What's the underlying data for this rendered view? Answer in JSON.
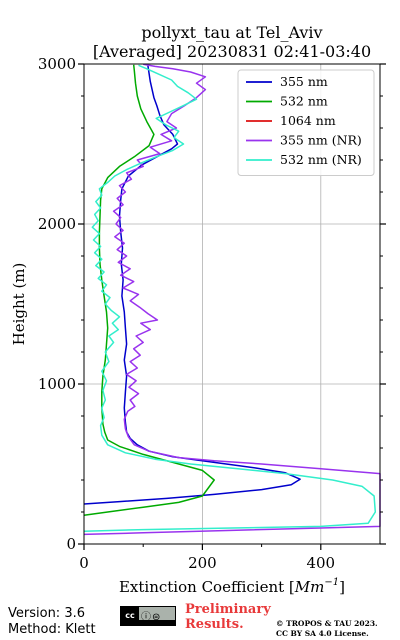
{
  "footer": {
    "version": "Version: 3.6",
    "method": "Method: Klett",
    "license_badge": {
      "left": "cc",
      "icons": "ⓘ⊜",
      "strip": "BY SA"
    },
    "preliminary_line1": "Preliminary",
    "preliminary_line2": "Results.",
    "copyright_line1": "© TROPOS & TAU 2023.",
    "copyright_line2": "CC BY SA 4.0 License."
  },
  "chart_data": {
    "type": "line",
    "title_line1": "pollyxt_tau at Tel_Aviv",
    "title_line2": "[Averaged] 20230831 02:41-03:40",
    "xlabel_prefix": "Extinction Coefficient [",
    "xlabel_unit": "Mm",
    "xlabel_exp": "−1",
    "xlabel_suffix": "]",
    "ylabel": "Height (m)",
    "xlim": [
      0,
      500
    ],
    "ylim": [
      0,
      3000
    ],
    "xticks": [
      0,
      200,
      400
    ],
    "xtick_labels": [
      "0",
      "200",
      "400"
    ],
    "yticks": [
      0,
      1000,
      2000,
      3000
    ],
    "ytick_labels": [
      "0",
      "1000",
      "2000",
      "3000"
    ],
    "grid": true,
    "legend_position": "top-right",
    "series": [
      {
        "name": "355 nm",
        "color": "#0000cc",
        "points": [
          [
            0,
            250
          ],
          [
            60,
            265
          ],
          [
            140,
            285
          ],
          [
            220,
            310
          ],
          [
            300,
            340
          ],
          [
            350,
            370
          ],
          [
            365,
            405
          ],
          [
            340,
            445
          ],
          [
            290,
            475
          ],
          [
            220,
            510
          ],
          [
            150,
            545
          ],
          [
            110,
            580
          ],
          [
            90,
            620
          ],
          [
            78,
            660
          ],
          [
            72,
            700
          ],
          [
            70,
            760
          ],
          [
            68,
            850
          ],
          [
            70,
            950
          ],
          [
            72,
            1050
          ],
          [
            68,
            1150
          ],
          [
            72,
            1250
          ],
          [
            70,
            1350
          ],
          [
            68,
            1450
          ],
          [
            64,
            1550
          ],
          [
            66,
            1650
          ],
          [
            63,
            1750
          ],
          [
            65,
            1850
          ],
          [
            62,
            1950
          ],
          [
            60,
            2050
          ],
          [
            62,
            2150
          ],
          [
            64,
            2220
          ],
          [
            75,
            2300
          ],
          [
            98,
            2370
          ],
          [
            128,
            2430
          ],
          [
            148,
            2470
          ],
          [
            158,
            2500
          ],
          [
            150,
            2560
          ],
          [
            135,
            2620
          ],
          [
            128,
            2680
          ],
          [
            123,
            2740
          ],
          [
            118,
            2790
          ],
          [
            115,
            2840
          ],
          [
            112,
            2890
          ],
          [
            110,
            2940
          ],
          [
            108,
            2990
          ]
        ]
      },
      {
        "name": "532 nm",
        "color": "#00aa00",
        "points": [
          [
            0,
            180
          ],
          [
            40,
            200
          ],
          [
            100,
            230
          ],
          [
            160,
            260
          ],
          [
            200,
            300
          ],
          [
            220,
            400
          ],
          [
            200,
            460
          ],
          [
            150,
            510
          ],
          [
            100,
            560
          ],
          [
            60,
            610
          ],
          [
            40,
            650
          ],
          [
            35,
            700
          ],
          [
            32,
            750
          ],
          [
            30,
            850
          ],
          [
            30,
            950
          ],
          [
            32,
            1050
          ],
          [
            36,
            1150
          ],
          [
            38,
            1250
          ],
          [
            40,
            1350
          ],
          [
            38,
            1450
          ],
          [
            34,
            1550
          ],
          [
            30,
            1650
          ],
          [
            27,
            1750
          ],
          [
            26,
            1850
          ],
          [
            26,
            1950
          ],
          [
            27,
            2050
          ],
          [
            28,
            2150
          ],
          [
            30,
            2220
          ],
          [
            40,
            2290
          ],
          [
            60,
            2360
          ],
          [
            85,
            2420
          ],
          [
            110,
            2490
          ],
          [
            118,
            2560
          ],
          [
            106,
            2640
          ],
          [
            96,
            2720
          ],
          [
            90,
            2800
          ],
          [
            87,
            2880
          ],
          [
            85,
            2960
          ],
          [
            84,
            2995
          ]
        ]
      },
      {
        "name": "1064 nm",
        "color": "#dd1111",
        "points": []
      },
      {
        "name": "355 nm (NR)",
        "color": "#9933ee",
        "points": [
          [
            0,
            60
          ],
          [
            100,
            70
          ],
          [
            250,
            85
          ],
          [
            400,
            100
          ],
          [
            500,
            110
          ],
          [
            500,
            440
          ],
          [
            400,
            470
          ],
          [
            300,
            500
          ],
          [
            220,
            520
          ],
          [
            160,
            540
          ],
          [
            110,
            580
          ],
          [
            85,
            620
          ],
          [
            75,
            670
          ],
          [
            70,
            720
          ],
          [
            68,
            780
          ],
          [
            74,
            830
          ],
          [
            86,
            860
          ],
          [
            78,
            900
          ],
          [
            92,
            940
          ],
          [
            76,
            980
          ],
          [
            88,
            1020
          ],
          [
            72,
            1060
          ],
          [
            90,
            1100
          ],
          [
            78,
            1140
          ],
          [
            95,
            1180
          ],
          [
            84,
            1220
          ],
          [
            100,
            1260
          ],
          [
            88,
            1300
          ],
          [
            112,
            1340
          ],
          [
            96,
            1380
          ],
          [
            124,
            1400
          ],
          [
            108,
            1440
          ],
          [
            94,
            1480
          ],
          [
            78,
            1520
          ],
          [
            92,
            1560
          ],
          [
            66,
            1600
          ],
          [
            84,
            1640
          ],
          [
            62,
            1680
          ],
          [
            78,
            1720
          ],
          [
            58,
            1760
          ],
          [
            72,
            1800
          ],
          [
            56,
            1840
          ],
          [
            68,
            1880
          ],
          [
            52,
            1920
          ],
          [
            66,
            1960
          ],
          [
            54,
            2000
          ],
          [
            62,
            2040
          ],
          [
            50,
            2080
          ],
          [
            66,
            2120
          ],
          [
            56,
            2160
          ],
          [
            70,
            2200
          ],
          [
            60,
            2240
          ],
          [
            80,
            2280
          ],
          [
            72,
            2320
          ],
          [
            100,
            2360
          ],
          [
            90,
            2400
          ],
          [
            128,
            2440
          ],
          [
            112,
            2480
          ],
          [
            148,
            2520
          ],
          [
            130,
            2560
          ],
          [
            156,
            2600
          ],
          [
            140,
            2640
          ],
          [
            148,
            2690
          ],
          [
            170,
            2740
          ],
          [
            190,
            2790
          ],
          [
            205,
            2840
          ],
          [
            190,
            2880
          ],
          [
            205,
            2920
          ],
          [
            180,
            2950
          ],
          [
            150,
            2970
          ],
          [
            120,
            2985
          ],
          [
            100,
            2998
          ]
        ]
      },
      {
        "name": "532 nm (NR)",
        "color": "#33eecc",
        "points": [
          [
            0,
            80
          ],
          [
            100,
            90
          ],
          [
            250,
            100
          ],
          [
            400,
            110
          ],
          [
            480,
            130
          ],
          [
            492,
            200
          ],
          [
            490,
            300
          ],
          [
            470,
            360
          ],
          [
            420,
            400
          ],
          [
            340,
            440
          ],
          [
            260,
            470
          ],
          [
            180,
            500
          ],
          [
            120,
            530
          ],
          [
            70,
            570
          ],
          [
            40,
            620
          ],
          [
            30,
            680
          ],
          [
            28,
            740
          ],
          [
            34,
            790
          ],
          [
            30,
            850
          ],
          [
            36,
            900
          ],
          [
            32,
            960
          ],
          [
            38,
            1020
          ],
          [
            30,
            1080
          ],
          [
            42,
            1140
          ],
          [
            36,
            1200
          ],
          [
            50,
            1260
          ],
          [
            42,
            1300
          ],
          [
            58,
            1340
          ],
          [
            48,
            1380
          ],
          [
            60,
            1420
          ],
          [
            46,
            1460
          ],
          [
            36,
            1500
          ],
          [
            44,
            1540
          ],
          [
            30,
            1580
          ],
          [
            38,
            1620
          ],
          [
            24,
            1660
          ],
          [
            34,
            1700
          ],
          [
            20,
            1740
          ],
          [
            30,
            1780
          ],
          [
            18,
            1820
          ],
          [
            28,
            1860
          ],
          [
            16,
            1900
          ],
          [
            26,
            1940
          ],
          [
            14,
            1980
          ],
          [
            24,
            2020
          ],
          [
            18,
            2060
          ],
          [
            28,
            2100
          ],
          [
            20,
            2140
          ],
          [
            30,
            2180
          ],
          [
            26,
            2220
          ],
          [
            40,
            2260
          ],
          [
            52,
            2300
          ],
          [
            72,
            2340
          ],
          [
            96,
            2380
          ],
          [
            122,
            2420
          ],
          [
            150,
            2460
          ],
          [
            168,
            2500
          ],
          [
            152,
            2540
          ],
          [
            160,
            2580
          ],
          [
            138,
            2620
          ],
          [
            122,
            2660
          ],
          [
            145,
            2700
          ],
          [
            168,
            2740
          ],
          [
            190,
            2780
          ],
          [
            176,
            2820
          ],
          [
            158,
            2860
          ],
          [
            148,
            2900
          ],
          [
            124,
            2940
          ],
          [
            106,
            2970
          ],
          [
            92,
            2992
          ]
        ]
      }
    ]
  }
}
